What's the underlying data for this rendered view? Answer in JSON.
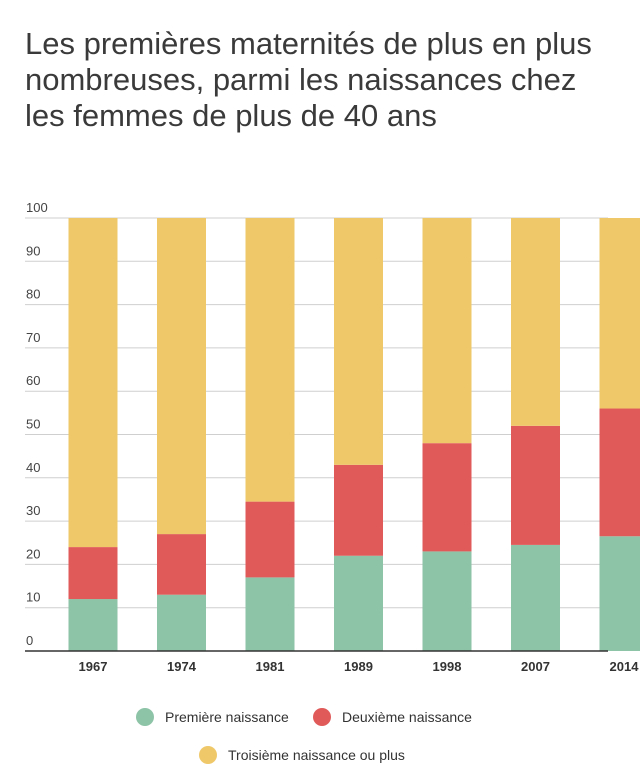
{
  "chart_data": {
    "type": "bar",
    "stacked": true,
    "title": "Les premières maternités de plus en plus nombreuses, parmi les naissances chez les femmes de plus de 40 ans",
    "categories": [
      "1967",
      "1974",
      "1981",
      "1989",
      "1998",
      "2007",
      "2014"
    ],
    "series": [
      {
        "name": "Première naissance",
        "color": "#8dc3a7",
        "values": [
          12,
          13,
          17,
          22,
          23,
          24.5,
          26.5
        ]
      },
      {
        "name": "Deuxième naissance",
        "color": "#e05a5a",
        "values": [
          12,
          14,
          17.5,
          21,
          25,
          27.5,
          29.5
        ]
      },
      {
        "name": "Troisième naissance ou plus",
        "color": "#efc869",
        "values": [
          76,
          73,
          65.5,
          57,
          52,
          48,
          44
        ]
      }
    ],
    "ylim": [
      0,
      100
    ],
    "yticks": [
      0,
      10,
      20,
      30,
      40,
      50,
      60,
      70,
      80,
      90,
      100
    ],
    "grid": true,
    "legend_position": "bottom"
  }
}
